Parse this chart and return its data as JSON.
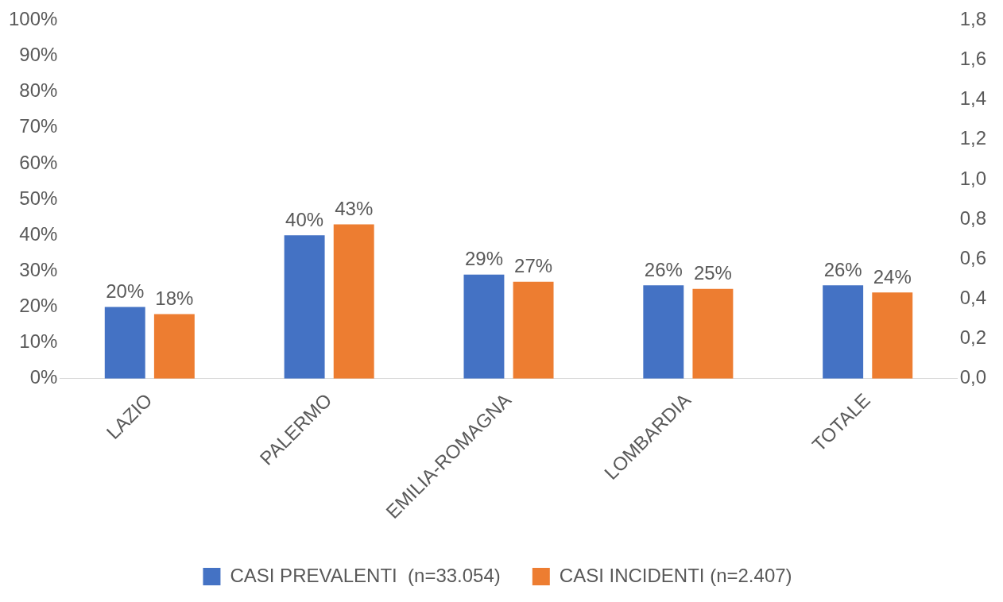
{
  "chart_data": {
    "type": "bar",
    "categories": [
      "LAZIO",
      "PALERMO",
      "EMILIA-ROMAGNA",
      "LOMBARDIA",
      "TOTALE"
    ],
    "series": [
      {
        "name": "CASI PREVALENTI  (n=33.054)",
        "color": "#4472c4",
        "values": [
          20,
          40,
          29,
          26,
          26
        ],
        "value_labels": [
          "20%",
          "40%",
          "29%",
          "26%",
          "26%"
        ]
      },
      {
        "name": "CASI INCIDENTI (n=2.407)",
        "color": "#ed7d31",
        "values": [
          18,
          43,
          27,
          25,
          24
        ],
        "value_labels": [
          "18%",
          "43%",
          "27%",
          "25%",
          "24%"
        ]
      }
    ],
    "ylim": [
      0,
      100
    ],
    "yticks": [
      {
        "value": 0,
        "label": "0%"
      },
      {
        "value": 10,
        "label": "10%"
      },
      {
        "value": 20,
        "label": "20%"
      },
      {
        "value": 30,
        "label": "30%"
      },
      {
        "value": 40,
        "label": "40%"
      },
      {
        "value": 50,
        "label": "50%"
      },
      {
        "value": 60,
        "label": "60%"
      },
      {
        "value": 70,
        "label": "70%"
      },
      {
        "value": 80,
        "label": "80%"
      },
      {
        "value": 90,
        "label": "90%"
      },
      {
        "value": 100,
        "label": "100%"
      }
    ],
    "y2lim": [
      0,
      1.8
    ],
    "y2ticks": [
      {
        "value": 0,
        "label": "0,0"
      },
      {
        "value": 0.2,
        "label": "0,2"
      },
      {
        "value": 0.4,
        "label": "0,4"
      },
      {
        "value": 0.6,
        "label": "0,6"
      },
      {
        "value": 0.8,
        "label": "0,8"
      },
      {
        "value": 1,
        "label": "1,0"
      },
      {
        "value": 1.2,
        "label": "1,2"
      },
      {
        "value": 1.4,
        "label": "1,4"
      },
      {
        "value": 1.6,
        "label": "1,6"
      },
      {
        "value": 1.8,
        "label": "1,8"
      }
    ],
    "grid": false,
    "legend": "bottom"
  }
}
